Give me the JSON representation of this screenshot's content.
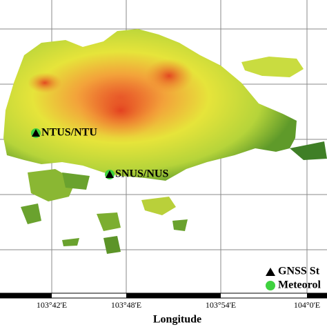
{
  "stations": [
    {
      "label": "NTUS/NTU"
    },
    {
      "label": "SNUS/NUS"
    }
  ],
  "legend": [
    {
      "label": "GNSS St"
    },
    {
      "label": "Meteorol"
    }
  ],
  "x_axis": {
    "ticks": [
      "103°42'E",
      "103°48'E",
      "103°54'E",
      "104°0'E"
    ],
    "label": "Longitude"
  }
}
